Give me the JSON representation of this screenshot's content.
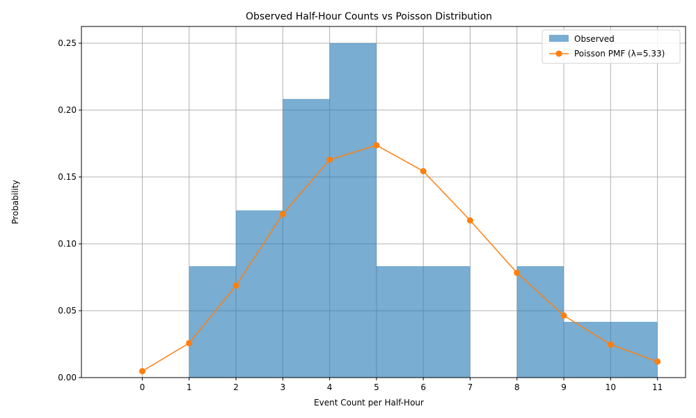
{
  "chart_data": {
    "type": "bar",
    "title": "Observed Half-Hour Counts vs Poisson Distribution",
    "xlabel": "Event Count per Half-Hour",
    "ylabel": "Probability",
    "xlim": [
      -1.3,
      11.6
    ],
    "ylim": [
      0,
      0.2625
    ],
    "x_ticks": [
      0,
      1,
      2,
      3,
      4,
      5,
      6,
      7,
      8,
      9,
      10,
      11
    ],
    "y_ticks": [
      0.0,
      0.05,
      0.1,
      0.15,
      0.2,
      0.25
    ],
    "y_tick_labels": [
      "0.00",
      "0.05",
      "0.10",
      "0.15",
      "0.20",
      "0.25"
    ],
    "grid": true,
    "legend_position": "top-right",
    "colors": {
      "observed": "#1f77b4",
      "poisson": "#ff7f0e",
      "grid": "#b0b0b0"
    },
    "series": [
      {
        "name": "Observed",
        "kind": "histogram",
        "bins": [
          {
            "start": 1,
            "end": 2,
            "value": 0.0833
          },
          {
            "start": 2,
            "end": 3,
            "value": 0.125
          },
          {
            "start": 3,
            "end": 4,
            "value": 0.2083
          },
          {
            "start": 4,
            "end": 5,
            "value": 0.25
          },
          {
            "start": 5,
            "end": 6,
            "value": 0.0833
          },
          {
            "start": 6,
            "end": 7,
            "value": 0.0833
          },
          {
            "start": 7,
            "end": 8,
            "value": 0.0
          },
          {
            "start": 8,
            "end": 9,
            "value": 0.0833
          },
          {
            "start": 9,
            "end": 10,
            "value": 0.0417
          },
          {
            "start": 10,
            "end": 11,
            "value": 0.0417
          }
        ]
      },
      {
        "name": "Poisson PMF (λ=5.33)",
        "kind": "line",
        "x": [
          0,
          1,
          2,
          3,
          4,
          5,
          6,
          7,
          8,
          9,
          10,
          11
        ],
        "values": [
          0.0048,
          0.0258,
          0.0688,
          0.1222,
          0.1629,
          0.1737,
          0.1543,
          0.1175,
          0.0783,
          0.0464,
          0.0247,
          0.012
        ]
      }
    ]
  }
}
